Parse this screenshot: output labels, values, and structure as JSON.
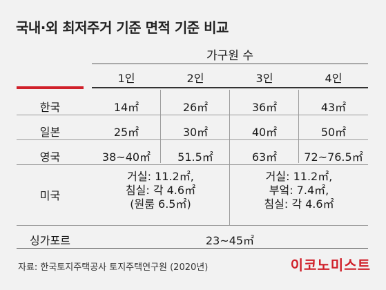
{
  "title": "국내·외 최저주거 기준 면적 기준 비교",
  "group_header": "가구원 수",
  "columns": [
    "1인",
    "2인",
    "3인",
    "4인"
  ],
  "rows": [
    {
      "label": "한국",
      "values": [
        "14㎡",
        "26㎡",
        "36㎡",
        "43㎡"
      ]
    },
    {
      "label": "일본",
      "values": [
        "25㎡",
        "30㎡",
        "40㎡",
        "50㎡"
      ]
    },
    {
      "label": "영국",
      "values": [
        "38~40㎡",
        "51.5㎡",
        "63㎡",
        "72~76.5㎡"
      ]
    }
  ],
  "usa": {
    "label": "미국",
    "left": [
      "거실: 11.2㎡,",
      "침실: 각 4.6㎡",
      "(원룸 6.5㎡)"
    ],
    "right": [
      "거실: 11.2㎡,",
      "부엌: 7.4㎡,",
      "침실: 각 4.6㎡"
    ]
  },
  "singapore": {
    "label": "싱가포르",
    "value": "23~45㎡"
  },
  "source": "자료: 한국토지주택공사 토지주택연구원 (2020년)",
  "logo": "이코노미스트",
  "colors": {
    "accent": "#d0202a",
    "background": "#f2f2f2"
  }
}
